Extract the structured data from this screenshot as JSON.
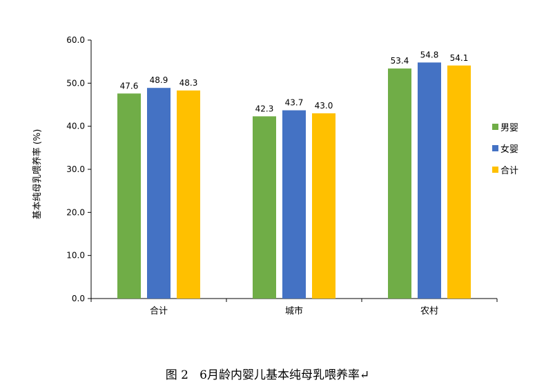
{
  "chart_data": {
    "type": "bar",
    "categories": [
      "合计",
      "城市",
      "农村"
    ],
    "series": [
      {
        "name": "男婴",
        "color": "#70AD47",
        "values": [
          47.6,
          42.3,
          53.4
        ]
      },
      {
        "name": "女婴",
        "color": "#4472C4",
        "values": [
          48.9,
          43.7,
          54.8
        ]
      },
      {
        "name": "合计",
        "color": "#FFC000",
        "values": [
          48.3,
          43.0,
          54.1
        ]
      }
    ],
    "ylabel": "基本纯母乳喂养率 (%)",
    "ylim": [
      0,
      60
    ],
    "yticks": [
      "0.0",
      "10.0",
      "20.0",
      "30.0",
      "40.0",
      "50.0",
      "60.0"
    ],
    "grid": false,
    "legend_position": "right",
    "data_labels": true
  },
  "caption": {
    "text": "图 2   6月龄内婴儿基本纯母乳喂养率↵"
  }
}
